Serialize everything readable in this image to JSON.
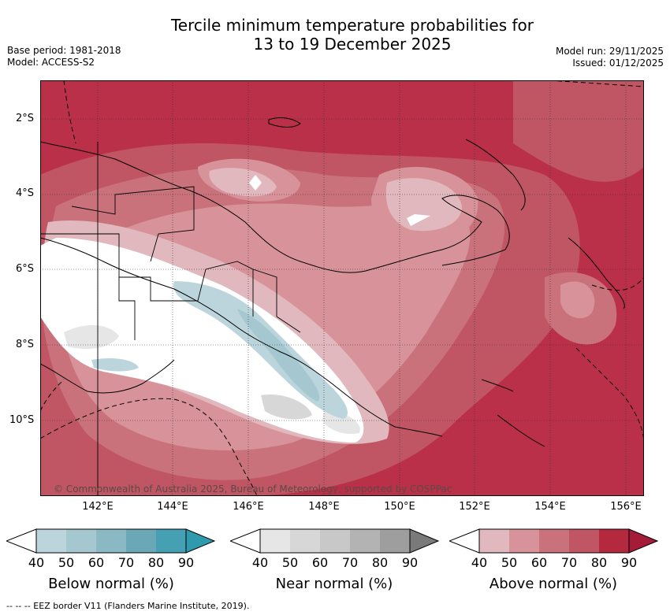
{
  "title_line1": "Tercile minimum temperature probabilities for",
  "title_line2": "13 to 19 December 2025",
  "meta_left": [
    "Base period: 1981-2018",
    "Model: ACCESS-S2"
  ],
  "meta_right": [
    "Model run: 29/11/2025",
    "Issued: 01/12/2025"
  ],
  "lat_labels": [
    "2°S",
    "4°S",
    "6°S",
    "8°S",
    "10°S"
  ],
  "lon_labels": [
    "142°E",
    "144°E",
    "146°E",
    "148°E",
    "150°E",
    "152°E",
    "154°E",
    "156°E"
  ],
  "copyright": "© Commonwealth of Australia 2025, Bureau of Meteorology, supported by COSPPac",
  "colorbars": [
    {
      "label": "Below normal (%)",
      "ticks": [
        "40",
        "50",
        "60",
        "70",
        "80",
        "90"
      ],
      "colors": [
        "#bcd5dc",
        "#a5c8d0",
        "#8ab8c3",
        "#6aa8b7",
        "#45a0b3",
        "#2f9aae"
      ]
    },
    {
      "label": "Near normal (%)",
      "ticks": [
        "40",
        "50",
        "60",
        "70",
        "80",
        "90"
      ],
      "colors": [
        "#e6e6e6",
        "#d7d7d7",
        "#c8c8c8",
        "#b3b3b3",
        "#9e9e9e",
        "#7a7a7a"
      ]
    },
    {
      "label": "Above normal (%)",
      "ticks": [
        "40",
        "50",
        "60",
        "70",
        "80",
        "90"
      ],
      "colors": [
        "#e0b8be",
        "#d79399",
        "#c9727c",
        "#c05563",
        "#b5293f",
        "#a51c38"
      ]
    }
  ],
  "footnote": "-- -- -- EEZ border V11 (Flanders Marine Institute, 2019).",
  "colors": {
    "above_high": "#b5293f",
    "above_mid": "#c05563",
    "above_low": "#c9727c",
    "above_min": "#d79399",
    "above_40": "#e0b8be",
    "below_40": "#bcd5dc",
    "near_40": "#e6e6e6"
  }
}
